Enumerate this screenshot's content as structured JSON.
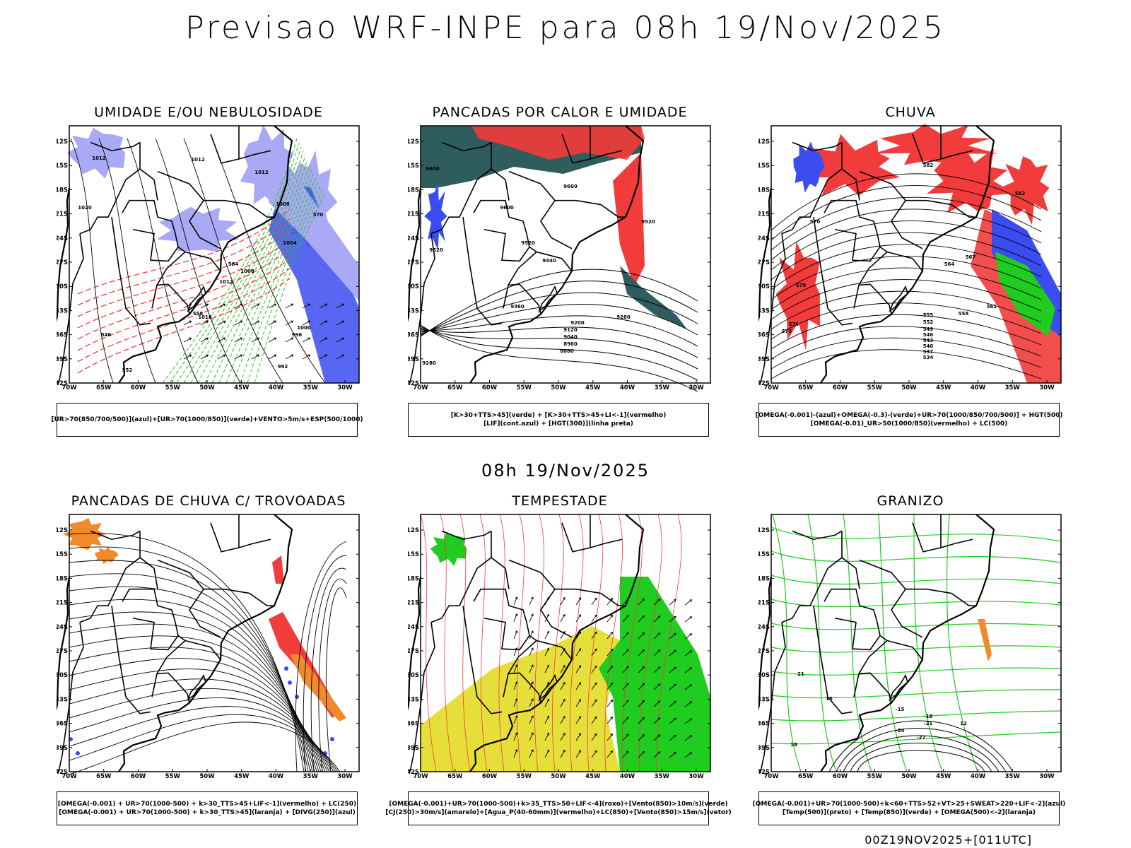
{
  "title": "Previsao WRF-INPE  para 08h 19/Nov/2025",
  "mid_title": "08h 19/Nov/2025",
  "footer": "00Z19NOV2025+[011UTC]",
  "axes": {
    "lat_labels": [
      "12S",
      "15S",
      "18S",
      "21S",
      "24S",
      "27S",
      "30S",
      "33S",
      "36S",
      "39S",
      "42S"
    ],
    "lon_labels": [
      "70W",
      "65W",
      "60W",
      "55W",
      "50W",
      "45W",
      "40W",
      "35W",
      "30W"
    ]
  },
  "panels": [
    {
      "title": "UMIDADE E/OU NEBULOSIDADE",
      "legend_line1": "[UR>70(850/700/500)](azul)+[UR>70(1000/850)](verde)+VENTO>5m/s+ESP(500/1000)",
      "legend_line2": "",
      "contour_labels": [
        "1012",
        "1012",
        "1012",
        "1008",
        "1004",
        "1008",
        "1012",
        "1016",
        "1020",
        "1000",
        "996",
        "992",
        "570",
        "564",
        "558",
        "552",
        "546"
      ]
    },
    {
      "title": "PANCADAS POR CALOR E UMIDADE",
      "legend_line1": "[K>30+TTS>45](verde) + [K>30+TTS>45+LI<-1](vermelho)",
      "legend_line2": "[LIF](cont.azul) + [HGT(300)](linha preta)",
      "contour_labels": [
        "9600",
        "9600",
        "9600",
        "9520",
        "9520",
        "9440",
        "9360",
        "9280",
        "9200",
        "9120",
        "9040",
        "8960",
        "8880",
        "9520",
        "9280"
      ]
    },
    {
      "title": "CHUVA",
      "legend_line1": "[OMEGA(-0.001)-(azul)+OMEGA(-0.3)-(verde)+UR>70(1000/850/700/500)] + HGT(500)",
      "legend_line2": "[OMEGA(-0.01)_UR>50(1000/850)(vermelho) + LC(500)",
      "contour_labels": [
        "582",
        "582",
        "579",
        "576",
        "573",
        "570",
        "567",
        "564",
        "561",
        "558",
        "555",
        "552",
        "549",
        "546",
        "543",
        "540",
        "537",
        "534"
      ]
    },
    {
      "title": "PANCADAS DE CHUVA C/ TROVOADAS",
      "legend_line1": "[OMEGA(-0.001) + UR>70(1000-500) + k>30_TTS>45+LIF<-1](vermelho) + LC(250)",
      "legend_line2": "[OMEGA(-0.001) + UR>70(1000-500) + k>30_TTS>45](laranja) + [DIVG(250)](azul)",
      "contour_labels": []
    },
    {
      "title": "TEMPESTADE",
      "legend_line1": "[OMEGA(-0.001)+UR>70(1000-500)+k>35_TTS>50+LIF<-4](roxo)+[Vento(850)>10m/s](verde)",
      "legend_line2": "[CJ(250)>30m/s](amarelo)+[Agua_P(40-60mm)](vermelho)+LC(850)+[Vento(850)>15m/s](vetor)",
      "contour_labels": []
    },
    {
      "title": "GRANIZO",
      "legend_line1": "[OMEGA(-0.001)+UR>70(1000-500)+k<60+TTS>52+VT>25+SWEAT>220+LIF<-2](azul)",
      "legend_line2": "[Temp(500)](preto) + [Temp(850)](verde) + [OMEGA(500)<-2](laranja)",
      "contour_labels": [
        "-15",
        "-18",
        "-21",
        "-24",
        "-27",
        "12",
        "15",
        "18",
        "21"
      ]
    }
  ],
  "colors": {
    "blue": "#3b4cf0",
    "lightblue": "#a9a9f5",
    "green": "#1fcc1f",
    "red": "#f23b3b",
    "darkteal": "#2f5c5c",
    "yellow": "#e6df3a",
    "orange": "#f08a2a"
  }
}
